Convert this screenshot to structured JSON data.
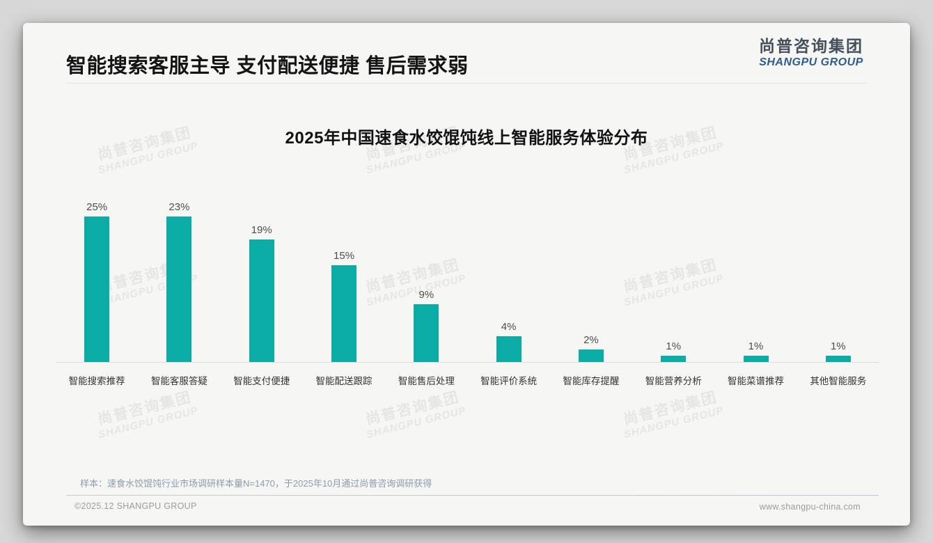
{
  "page": {
    "main_title": "智能搜索客服主导 支付配送便捷 售后需求弱",
    "logo": {
      "cn": "尚普咨询集团",
      "en": "SHANGPU GROUP",
      "en_color": "#2d5c90",
      "cn_color": "#454f5b"
    },
    "watermark": {
      "cn": "尚普咨询集团",
      "en": "SHANGPU GROUP"
    },
    "footer_note": "样本：速食水饺馄饨行业市场调研样本量N=1470，于2025年10月通过尚普咨询调研获得",
    "footer_left": "©2025.12 SHANGPU GROUP",
    "footer_right": "www.shangpu-china.com"
  },
  "chart_data": {
    "type": "bar",
    "title": "2025年中国速食水饺馄饨线上智能服务体验分布",
    "categories": [
      "智能搜索推荐",
      "智能客服答疑",
      "智能支付便捷",
      "智能配送跟踪",
      "智能售后处理",
      "智能评价系统",
      "智能库存提醒",
      "智能营养分析",
      "智能菜谱推荐",
      "其他智能服务"
    ],
    "values": [
      25,
      23,
      19,
      15,
      9,
      4,
      2,
      1,
      1,
      1
    ],
    "data_labels": [
      "25%",
      "23%",
      "19%",
      "15%",
      "9%",
      "4%",
      "2%",
      "1%",
      "1%",
      "1%"
    ],
    "unit": "%",
    "xlabel": "",
    "ylabel": "",
    "ylim": [
      0,
      25
    ],
    "grid": false,
    "legend": "none",
    "bar_color": "#0baca5"
  }
}
